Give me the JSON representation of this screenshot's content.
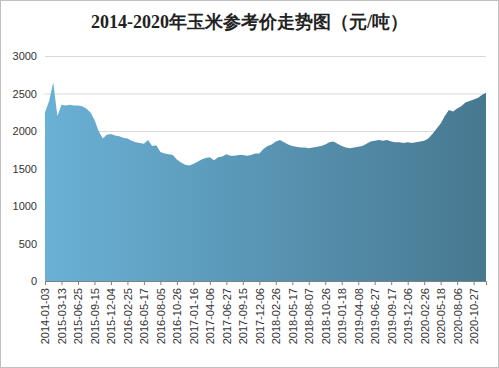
{
  "chart_data": {
    "type": "area",
    "title": "2014-2020年玉米参考价走势图（元/吨）",
    "categories": [
      "2014-01-03",
      null,
      null,
      null,
      "2015-03-13",
      null,
      null,
      null,
      "2015-06-25",
      null,
      null,
      null,
      "2015-09-15",
      null,
      null,
      null,
      "2015-12-04",
      null,
      null,
      null,
      "2016-02-25",
      null,
      null,
      null,
      "2016-05-17",
      null,
      null,
      null,
      "2016-08-05",
      null,
      null,
      null,
      "2016-10-26",
      null,
      null,
      null,
      "2017-01-16",
      null,
      null,
      null,
      "2017-04-06",
      null,
      null,
      null,
      "2017-06-27",
      null,
      null,
      null,
      "2017-09-15",
      null,
      null,
      null,
      "2017-12-06",
      null,
      null,
      null,
      "2018-02-26",
      null,
      null,
      null,
      "2018-05-17",
      null,
      null,
      null,
      "2018-08-07",
      null,
      null,
      null,
      "2018-10-26",
      null,
      null,
      null,
      "2019-01-18",
      null,
      null,
      null,
      "2019-04-08",
      null,
      null,
      null,
      "2019-06-27",
      null,
      null,
      null,
      "2019-09-17",
      null,
      null,
      null,
      "2019-12-06",
      null,
      null,
      null,
      "2020-02-26",
      null,
      null,
      null,
      "2020-05-18",
      null,
      null,
      null,
      "2020-08-06",
      null,
      null,
      null,
      "2020-10-27",
      null,
      null,
      null
    ],
    "values": [
      2250,
      2400,
      2650,
      2200,
      2350,
      2340,
      2350,
      2340,
      2340,
      2330,
      2300,
      2250,
      2150,
      2000,
      1900,
      1950,
      1960,
      1940,
      1930,
      1910,
      1900,
      1870,
      1850,
      1840,
      1830,
      1880,
      1800,
      1810,
      1720,
      1700,
      1690,
      1680,
      1620,
      1580,
      1550,
      1540,
      1560,
      1590,
      1620,
      1640,
      1650,
      1610,
      1650,
      1660,
      1690,
      1670,
      1670,
      1680,
      1680,
      1670,
      1680,
      1700,
      1700,
      1760,
      1800,
      1820,
      1860,
      1880,
      1850,
      1820,
      1800,
      1790,
      1780,
      1780,
      1770,
      1780,
      1790,
      1800,
      1820,
      1850,
      1860,
      1830,
      1800,
      1780,
      1770,
      1780,
      1790,
      1800,
      1830,
      1860,
      1870,
      1880,
      1870,
      1880,
      1860,
      1850,
      1850,
      1840,
      1850,
      1840,
      1850,
      1860,
      1870,
      1900,
      1960,
      2030,
      2100,
      2200,
      2280,
      2260,
      2300,
      2330,
      2380,
      2400,
      2420,
      2440,
      2480,
      2510
    ],
    "color": "#5f9fc0",
    "ylim": [
      0,
      3000
    ],
    "yticks": [
      0,
      500,
      1000,
      1500,
      2000,
      2500,
      3000
    ],
    "grid": true
  }
}
